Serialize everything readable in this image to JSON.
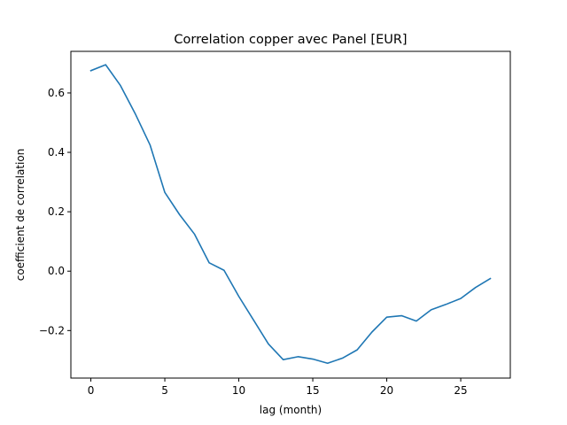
{
  "chart_data": {
    "type": "line",
    "title": "Correlation copper avec Panel [EUR]",
    "xlabel": "lag (month)",
    "ylabel": "coefficient de correlation",
    "xlim": [
      -1.35,
      28.35
    ],
    "ylim": [
      -0.36,
      0.74
    ],
    "xticks": [
      0,
      5,
      10,
      15,
      20,
      25
    ],
    "yticks": [
      -0.2,
      0.0,
      0.2,
      0.4,
      0.6
    ],
    "ytick_labels": [
      "−0.2",
      "0.0",
      "0.2",
      "0.4",
      "0.6"
    ],
    "grid": false,
    "legend": "none",
    "series": [
      {
        "color": "#1f77b4",
        "x": [
          0,
          1,
          2,
          3,
          4,
          5,
          6,
          7,
          8,
          9,
          10,
          11,
          12,
          13,
          14,
          15,
          16,
          17,
          18,
          19,
          20,
          21,
          22,
          23,
          24,
          25,
          26,
          27
        ],
        "y": [
          0.675,
          0.695,
          0.625,
          0.53,
          0.425,
          0.265,
          0.19,
          0.125,
          0.028,
          0.003,
          -0.085,
          -0.165,
          -0.245,
          -0.298,
          -0.288,
          -0.296,
          -0.31,
          -0.293,
          -0.265,
          -0.205,
          -0.155,
          -0.15,
          -0.168,
          -0.13,
          -0.112,
          -0.092,
          -0.055,
          -0.025
        ]
      }
    ]
  }
}
